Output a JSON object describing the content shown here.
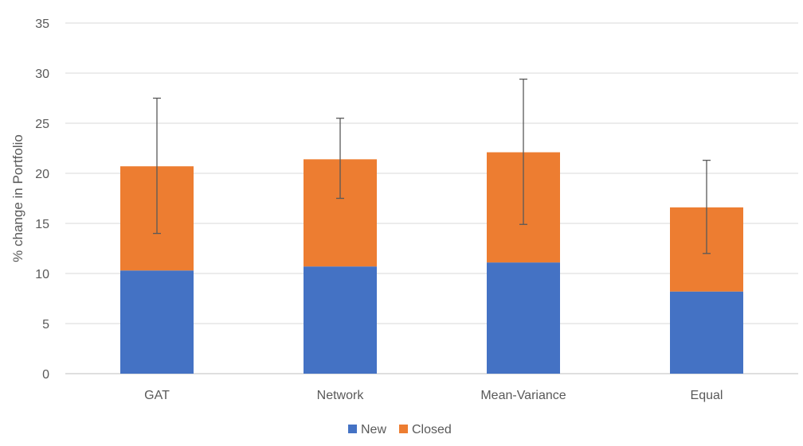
{
  "chart_data": {
    "type": "bar",
    "stacked": true,
    "title": "",
    "xlabel": "",
    "ylabel": "% change in Portfolio",
    "ylim": [
      0,
      35
    ],
    "yticks": [
      0,
      5,
      10,
      15,
      20,
      25,
      30,
      35
    ],
    "grid": true,
    "legend_position": "bottom-center",
    "categories": [
      "GAT",
      "Network",
      "Mean-Variance",
      "Equal"
    ],
    "series": [
      {
        "name": "New",
        "color": "#4472C4",
        "values": [
          10.3,
          10.7,
          11.1,
          8.2
        ]
      },
      {
        "name": "Closed",
        "color": "#ED7D31",
        "values": [
          10.4,
          10.7,
          11.0,
          8.4
        ]
      }
    ],
    "error_bars": [
      {
        "low": 14.0,
        "high": 27.5
      },
      {
        "low": 17.5,
        "high": 25.5
      },
      {
        "low": 14.9,
        "high": 29.4
      },
      {
        "low": 12.0,
        "high": 21.3
      }
    ],
    "colors": {
      "gridline": "#D9D9D9",
      "axis": "#BFBFBF",
      "error_bar": "#595959",
      "text": "#595959"
    }
  }
}
